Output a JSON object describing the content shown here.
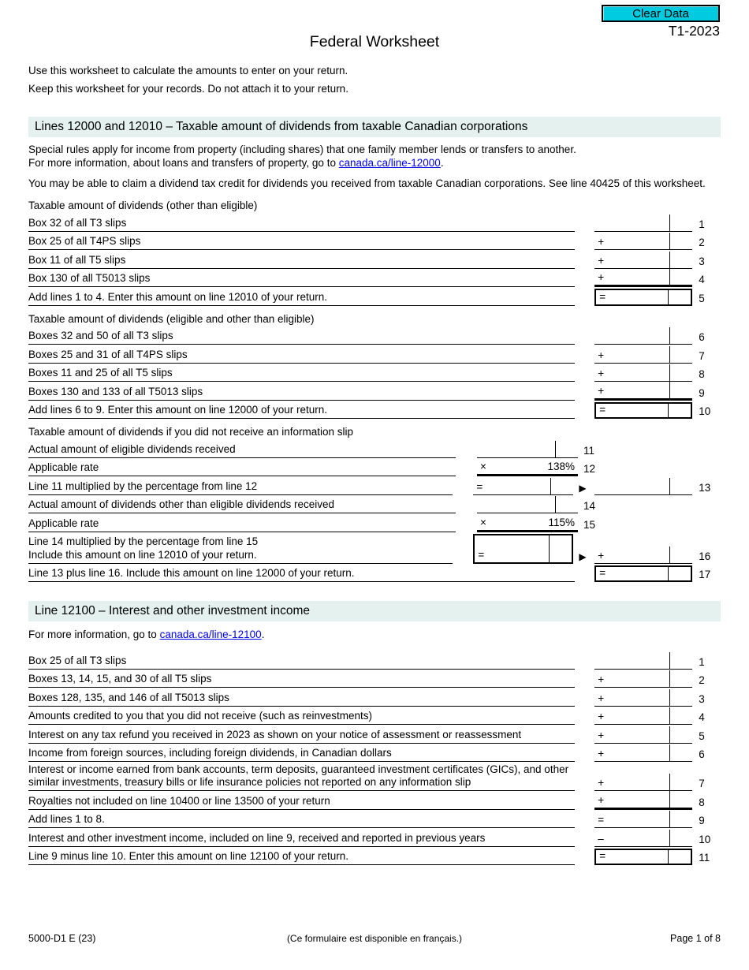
{
  "toolbar": {
    "clear_button": "Clear Data"
  },
  "header": {
    "form_version": "T1-2023",
    "title": "Federal Worksheet"
  },
  "intro": {
    "line1": "Use this worksheet to calculate the amounts to enter on your return.",
    "line2": "Keep this worksheet for your records. Do not attach it to your return."
  },
  "colors": {
    "button_bg": "#00cbe0",
    "section_bg": "#e4f1ef",
    "link": "#0000ee"
  },
  "s1": {
    "heading": "Lines 12000 and 12010 – Taxable amount of dividends from taxable Canadian corporations",
    "p1a": "Special rules apply for income from property (including shares) that one family member lends or transfers to another.",
    "p1b": "For more information, about loans and transfers of property, go to ",
    "p1link": "canada.ca/line-12000",
    "p1end": ".",
    "p2": "You may be able to claim a dividend tax credit for dividends you received from taxable Canadian corporations. See line 40425 of this worksheet.",
    "g1label": "Taxable amount of dividends (other than eligible)",
    "g1": [
      {
        "label": "Box 32 of all T3 slips",
        "op": "",
        "num": "1",
        "variant": ""
      },
      {
        "label": "Box 25 of all T4PS slips",
        "op": "+",
        "num": "2",
        "variant": ""
      },
      {
        "label": "Box 11 of all T5 slips",
        "op": "+",
        "num": "3",
        "variant": ""
      },
      {
        "label": "Box 130 of all T5013 slips",
        "op": "+",
        "num": "4",
        "variant": "thick"
      },
      {
        "label": "Add lines 1 to 4. Enter this amount on line 12010 of your return.",
        "op": "=",
        "num": "5",
        "variant": "box"
      }
    ],
    "g2label": "Taxable amount of dividends (eligible and other than eligible)",
    "g2": [
      {
        "label": "Boxes 32 and 50 of all T3 slips",
        "op": "",
        "num": "6",
        "variant": ""
      },
      {
        "label": "Boxes 25 and 31 of all T4PS slips",
        "op": "+",
        "num": "7",
        "variant": ""
      },
      {
        "label": "Boxes 11 and 25 of all T5 slips",
        "op": "+",
        "num": "8",
        "variant": ""
      },
      {
        "label": "Boxes 130 and 133 of all T5013 slips",
        "op": "+",
        "num": "9",
        "variant": "thick"
      },
      {
        "label": "Add lines 6 to 9. Enter this amount on line 12000 of your return.",
        "op": "=",
        "num": "10",
        "variant": "box"
      }
    ],
    "g3label": "Taxable amount of dividends if you did not receive an information slip",
    "r11": {
      "label": "Actual amount of eligible dividends received",
      "num": "11"
    },
    "r12": {
      "label": "Applicable rate",
      "op": "×",
      "value": "138%",
      "num": "12"
    },
    "r13": {
      "label": "Line 11 multiplied by the percentage from line 12",
      "op": "=",
      "arrow": "▶",
      "num": "13"
    },
    "r14": {
      "label": "Actual amount of dividends other than eligible dividends received",
      "num": "14"
    },
    "r15": {
      "label": "Applicable rate",
      "op": "×",
      "value": "115%",
      "num": "15"
    },
    "r16": {
      "label1": "Line 14 multiplied by the percentage from line 15",
      "label2": "Include this amount on line 12010 of your return.",
      "op": "=",
      "arrow": "▶",
      "op2": "+",
      "num": "16"
    },
    "r17": {
      "label": "Line 13 plus line 16. Include this amount on line 12000 of your return.",
      "op": "=",
      "num": "17"
    }
  },
  "s2": {
    "heading": "Line 12100 – Interest and other investment income",
    "p1": "For more information, go to ",
    "p1link": "canada.ca/line-12100",
    "p1end": ".",
    "rows": [
      {
        "label": "Box 25 of all T3 slips",
        "op": "",
        "num": "1",
        "variant": ""
      },
      {
        "label": "Boxes 13, 14, 15, and 30 of all T5 slips",
        "op": "+",
        "num": "2",
        "variant": ""
      },
      {
        "label": "Boxes 128, 135, and 146 of all T5013 slips",
        "op": "+",
        "num": "3",
        "variant": ""
      },
      {
        "label": "Amounts credited to you that you did not receive (such as reinvestments)",
        "op": "+",
        "num": "4",
        "variant": ""
      },
      {
        "label": "Interest on any tax refund you received in 2023 as shown on your notice of assessment or reassessment",
        "op": "+",
        "num": "5",
        "variant": ""
      },
      {
        "label": "Income from foreign sources, including foreign dividends, in Canadian dollars",
        "op": "+",
        "num": "6",
        "variant": ""
      },
      {
        "label": "Interest or income earned from bank accounts, term deposits, guaranteed investment certificates (GICs), and other similar investments, treasury bills or life insurance policies not reported on any information slip",
        "op": "+",
        "num": "7",
        "variant": "tall"
      },
      {
        "label": "Royalties not included on line 10400 or line 13500 of your return",
        "op": "+",
        "num": "8",
        "variant": "thick"
      },
      {
        "label": "Add lines 1 to 8.",
        "op": "=",
        "num": "9",
        "variant": ""
      },
      {
        "label": "Interest and other investment income, included on line 9, received and reported in previous years",
        "op": "–",
        "num": "10",
        "variant": ""
      },
      {
        "label": "Line 9 minus line 10. Enter this amount on line 12100 of your return.",
        "op": "=",
        "num": "11",
        "variant": "box"
      }
    ]
  },
  "footer": {
    "left": "5000-D1 E (23)",
    "center": "(Ce formulaire est disponible en français.)",
    "right": "Page 1 of 8"
  }
}
